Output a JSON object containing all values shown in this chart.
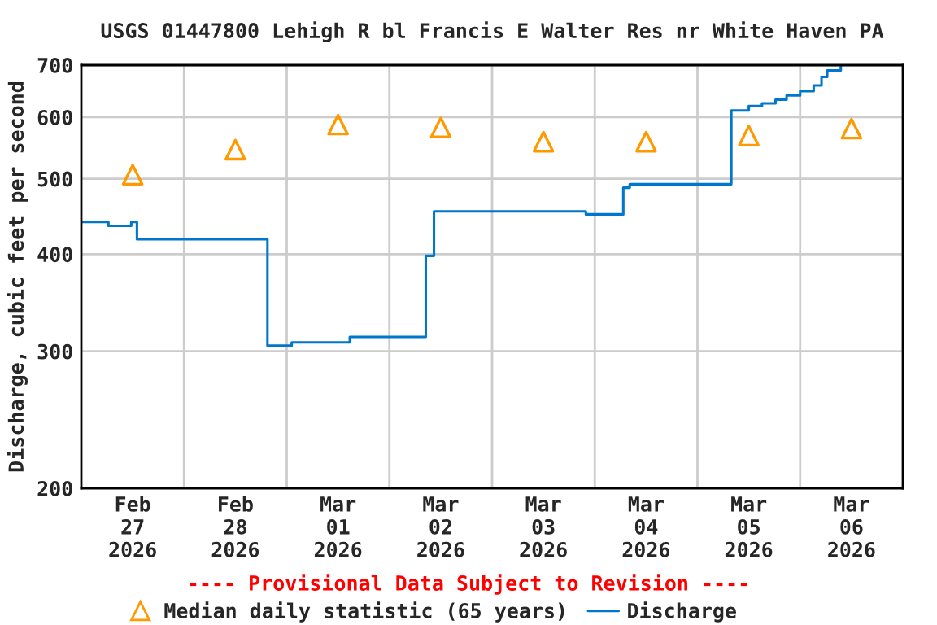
{
  "chart_data": {
    "type": "step",
    "title": "USGS 01447800 Lehigh R bl Francis E Walter Res nr White Haven PA",
    "ylabel": "Discharge, cubic feet per second",
    "annotations": [
      "---- Provisional Data Subject to Revision ----"
    ],
    "log": "y",
    "grid": true,
    "legend": "bottom",
    "xlim": [
      "2026-02-27T00:00",
      "2026-03-07T00:00"
    ],
    "xticks": [
      {
        "value": "2026-02-27T12:00",
        "label": "Feb\n27\n2026"
      },
      {
        "value": "2026-02-28T00:00",
        "label": null
      },
      {
        "value": "2026-02-28T12:00",
        "label": "Feb\n28\n2026"
      },
      {
        "value": "2026-03-01T00:00",
        "label": null
      },
      {
        "value": "2026-03-01T12:00",
        "label": "Mar\n01\n2026"
      },
      {
        "value": "2026-03-02T00:00",
        "label": null
      },
      {
        "value": "2026-03-02T12:00",
        "label": "Mar\n02\n2026"
      },
      {
        "value": "2026-03-03T00:00",
        "label": null
      },
      {
        "value": "2026-03-03T12:00",
        "label": "Mar\n03\n2026"
      },
      {
        "value": "2026-03-04T00:00",
        "label": null
      },
      {
        "value": "2026-03-04T12:00",
        "label": "Mar\n04\n2026"
      },
      {
        "value": "2026-03-05T00:00",
        "label": null
      },
      {
        "value": "2026-03-05T12:00",
        "label": "Mar\n05\n2026"
      },
      {
        "value": "2026-03-06T00:00",
        "label": null
      },
      {
        "value": "2026-03-06T12:00",
        "label": "Mar\n06\n2026"
      }
    ],
    "ylim": [
      200,
      700
    ],
    "yticks": [
      200,
      300,
      400,
      500,
      600,
      700
    ],
    "series": [
      {
        "name": "Median daily statistic (65 years)",
        "type": "scatter",
        "marker": "triangle",
        "color": "#ff9900",
        "x": [
          "2026-02-27T12:00",
          "2026-02-28T12:00",
          "2026-03-01T12:00",
          "2026-03-02T12:00",
          "2026-03-03T12:00",
          "2026-03-04T12:00",
          "2026-03-05T12:00",
          "2026-03-06T12:00"
        ],
        "values": [
          506,
          545,
          587,
          582,
          558,
          558,
          568,
          580
        ]
      },
      {
        "name": "Discharge",
        "color": "#0077cc",
        "x": [
          "2026-02-27T00:00",
          "2026-02-27T06:20",
          "2026-02-27T11:40",
          "2026-02-27T13:00",
          "2026-02-28T19:30",
          "2026-03-01T01:10",
          "2026-03-01T14:45",
          "2026-03-02T08:30",
          "2026-03-02T10:25",
          "2026-03-03T21:55",
          "2026-03-04T06:40",
          "2026-03-04T08:10",
          "2026-03-05T07:55",
          "2026-03-05T12:00",
          "2026-03-05T15:05",
          "2026-03-05T18:15",
          "2026-03-05T20:50",
          "2026-03-06T00:00",
          "2026-03-06T03:10",
          "2026-03-06T05:00",
          "2026-03-06T06:20",
          "2026-03-06T09:30"
        ],
        "values": [
          440,
          435,
          440,
          418,
          305,
          308,
          313,
          398,
          454,
          450,
          487,
          492,
          612,
          620,
          625,
          632,
          640,
          648,
          659,
          676,
          689,
          697
        ]
      }
    ]
  }
}
